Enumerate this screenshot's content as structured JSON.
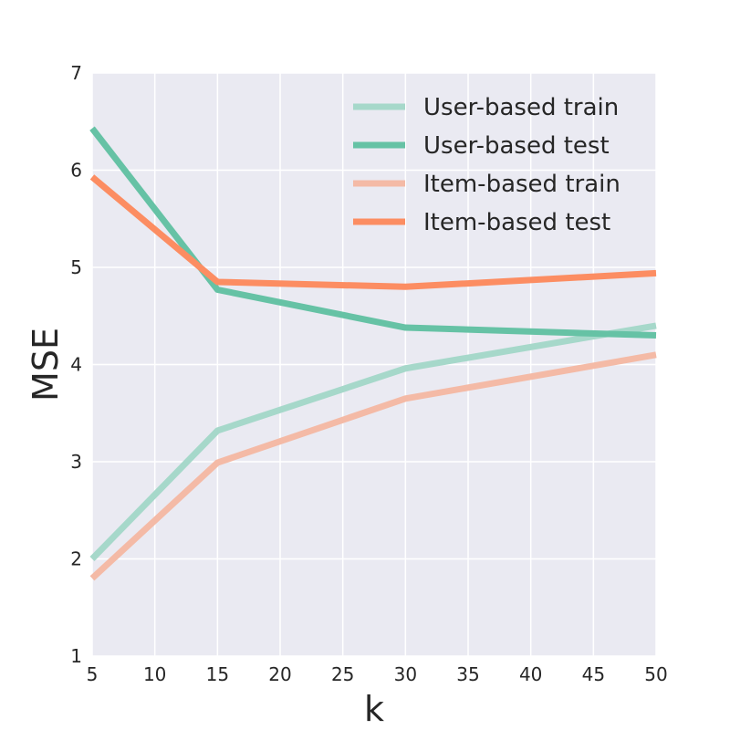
{
  "chart_data": {
    "type": "line",
    "title": "",
    "xlabel": "k",
    "ylabel": "MSE",
    "xlim": [
      5,
      50
    ],
    "ylim": [
      1,
      7
    ],
    "xticks": [
      5,
      10,
      15,
      20,
      25,
      30,
      35,
      40,
      45,
      50
    ],
    "yticks": [
      1,
      2,
      3,
      4,
      5,
      6,
      7
    ],
    "grid": true,
    "legend_position": "top-right",
    "x": [
      5,
      15,
      30,
      50
    ],
    "series": [
      {
        "name": "User-based train",
        "values": [
          2.0,
          3.32,
          3.96,
          4.4
        ],
        "color": "#a6d8ca"
      },
      {
        "name": "User-based test",
        "values": [
          6.43,
          4.77,
          4.38,
          4.3
        ],
        "color": "#66c2a5"
      },
      {
        "name": "Item-based train",
        "values": [
          1.8,
          2.99,
          3.65,
          4.1
        ],
        "color": "#f4baa6"
      },
      {
        "name": "Item-based test",
        "values": [
          5.93,
          4.85,
          4.8,
          4.94
        ],
        "color": "#fc8d62"
      }
    ],
    "background": "#eaeaf2",
    "gridColor": "#ffffff"
  }
}
